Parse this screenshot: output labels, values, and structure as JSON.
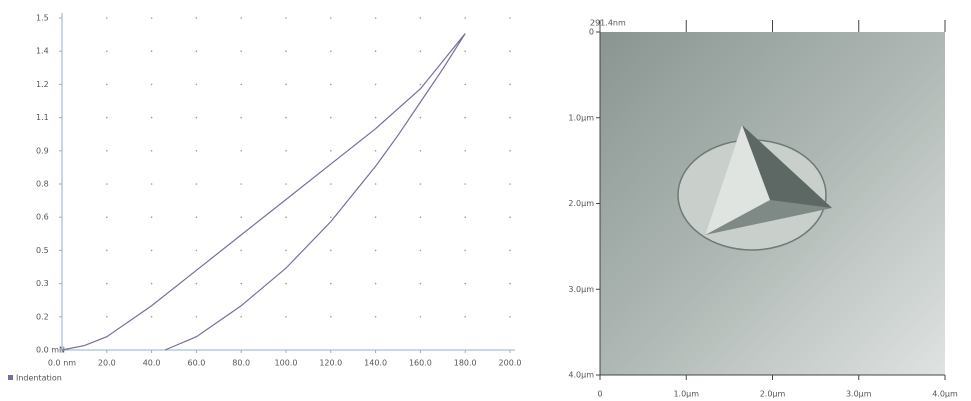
{
  "chart_data": [
    {
      "type": "line",
      "series": [
        {
          "name": "Indentation",
          "color": "#7b6c9c",
          "x": [
            0,
            10,
            20,
            30,
            40,
            60,
            80,
            100,
            120,
            140,
            160,
            180,
            170,
            160,
            150,
            140,
            120,
            100,
            80,
            60,
            46
          ],
          "values": [
            0,
            0.02,
            0.06,
            0.13,
            0.2,
            0.36,
            0.52,
            0.68,
            0.84,
            1.0,
            1.18,
            1.43,
            1.27,
            1.12,
            0.97,
            0.83,
            0.58,
            0.37,
            0.2,
            0.06,
            0
          ]
        }
      ],
      "xlim": [
        0,
        200
      ],
      "xticks": [
        {
          "value": 0,
          "label": "0.0 nm"
        },
        {
          "value": 20,
          "label": "20.0"
        },
        {
          "value": 40,
          "label": "40.0"
        },
        {
          "value": 60,
          "label": "60.0"
        },
        {
          "value": 80,
          "label": "80.0"
        },
        {
          "value": 100,
          "label": "100.0"
        },
        {
          "value": 120,
          "label": "120.0"
        },
        {
          "value": 140,
          "label": "140.0"
        },
        {
          "value": 160,
          "label": "160.0"
        },
        {
          "value": 180,
          "label": "180.0"
        },
        {
          "value": 200,
          "label": "200.0"
        }
      ],
      "ylim": [
        0,
        1.5
      ],
      "yticks": [
        {
          "value": 0,
          "label": "0.0 mN"
        },
        {
          "value": 0.15,
          "label": "0.2"
        },
        0.3,
        {
          "value": 0.45,
          "label": "0.5"
        },
        0.6,
        {
          "value": 0.75,
          "label": "0.8"
        },
        0.9,
        {
          "value": 1.05,
          "label": "1.1"
        },
        1.2,
        {
          "value": 1.35,
          "label": "1.4"
        },
        1.5
      ],
      "grid": true
    },
    {
      "type": "image",
      "title": "291.4nm",
      "xlim": [
        0,
        4
      ],
      "xticks": [
        0,
        {
          "value": 1,
          "label": "1.0µm"
        },
        {
          "value": 2,
          "label": "2.0µm"
        },
        {
          "value": 3,
          "label": "3.0µm"
        },
        {
          "value": 4,
          "label": "4.0µm"
        }
      ],
      "ylim": [
        0,
        4
      ],
      "yticks": [
        0,
        {
          "value": 1,
          "label": "1.0µm"
        },
        {
          "value": 2,
          "label": "2.0µm"
        },
        {
          "value": 3,
          "label": "3.0µm"
        },
        {
          "value": 4,
          "label": "4.0µm"
        }
      ]
    }
  ]
}
